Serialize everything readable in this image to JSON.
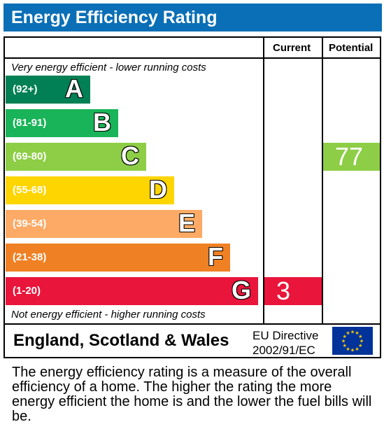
{
  "title": "Energy Efficiency Rating",
  "columns": {
    "current": "Current",
    "potential": "Potential"
  },
  "top_caption": "Very energy efficient - lower running costs",
  "bottom_caption": "Not energy efficient - higher running costs",
  "bands": [
    {
      "letter": "A",
      "range": "(92+)",
      "color": "#008054"
    },
    {
      "letter": "B",
      "range": "(81-91)",
      "color": "#19b459"
    },
    {
      "letter": "C",
      "range": "(69-80)",
      "color": "#8dce46"
    },
    {
      "letter": "D",
      "range": "(55-68)",
      "color": "#ffd500"
    },
    {
      "letter": "E",
      "range": "(39-54)",
      "color": "#fcaa65"
    },
    {
      "letter": "F",
      "range": "(21-38)",
      "color": "#ef8023"
    },
    {
      "letter": "G",
      "range": "(1-20)",
      "color": "#e9153b"
    }
  ],
  "current": {
    "value": "3",
    "band": "G",
    "color": "#e9153b"
  },
  "potential": {
    "value": "77",
    "band": "C",
    "color": "#8dce46"
  },
  "footer": {
    "country": "England, Scotland & Wales",
    "directive_line1": "EU Directive",
    "directive_line2": "2002/91/EC",
    "flag_colors": {
      "background": "#003399",
      "stars": "#ffcc00"
    }
  },
  "description": "The energy efficiency rating is a measure of the overall efficiency of a home. The higher the rating the more energy efficient the home is and the lower the fuel bills will be."
}
